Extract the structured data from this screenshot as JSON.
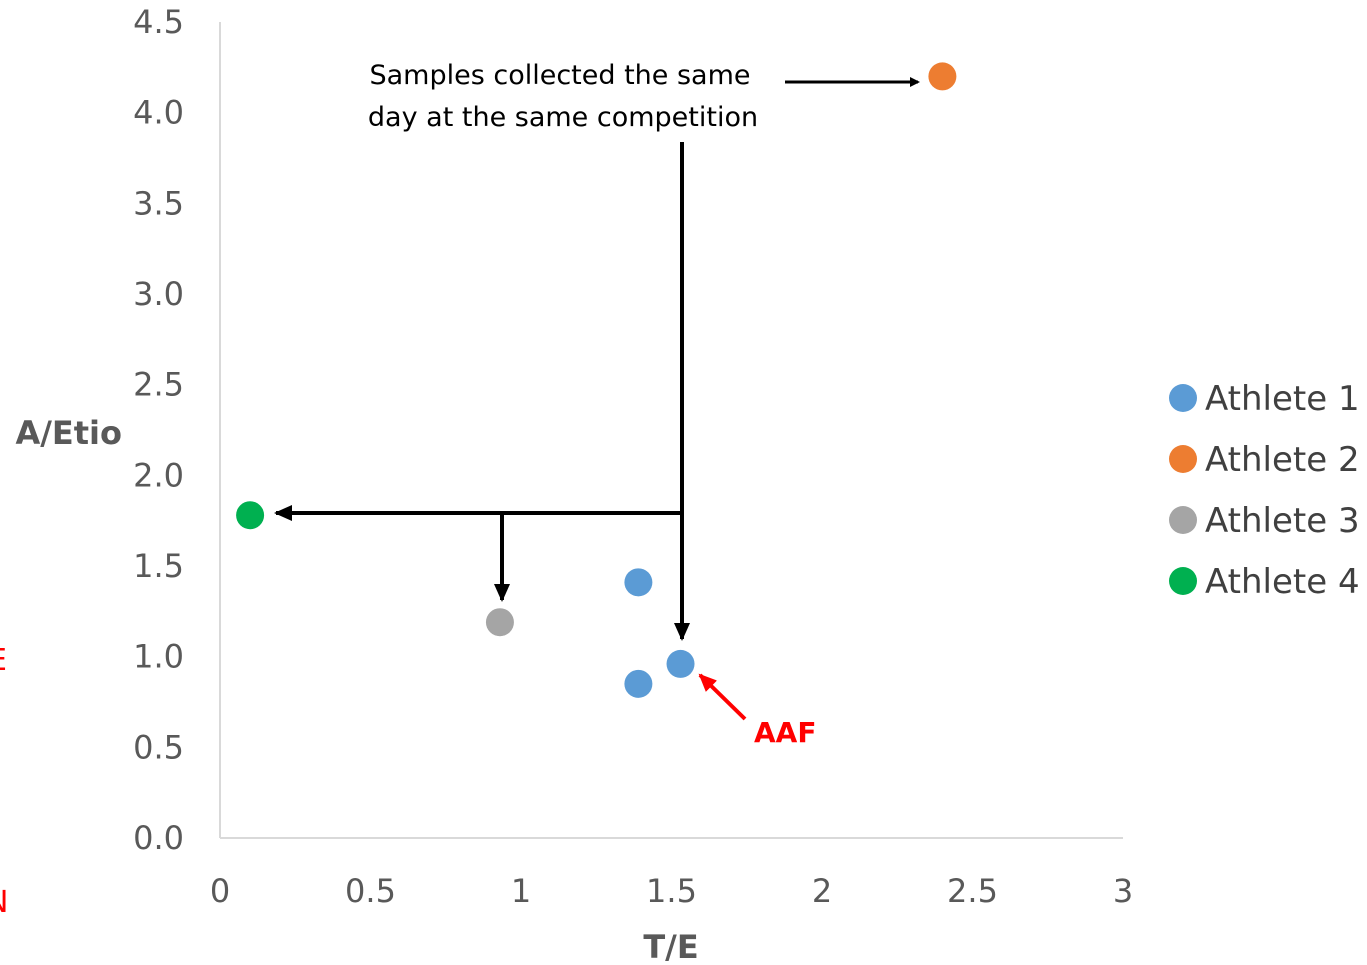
{
  "chart_data": {
    "type": "scatter",
    "title": "",
    "xlabel": "T/E",
    "ylabel": "A/Etio",
    "xlim": [
      0,
      3
    ],
    "ylim": [
      0,
      4.5
    ],
    "x_ticks": [
      "0",
      "0.5",
      "1",
      "1.5",
      "2",
      "2.5",
      "3"
    ],
    "y_ticks": [
      "0.0",
      "0.5",
      "1.0",
      "1.5",
      "2.0",
      "2.5",
      "3.0",
      "3.5",
      "4.0",
      "4.5"
    ],
    "grid": false,
    "legend_position": "right",
    "series": [
      {
        "name": "Athlete 1",
        "color": "#5B9BD5",
        "points": [
          [
            1.39,
            1.41
          ],
          [
            1.53,
            0.96
          ],
          [
            1.39,
            0.85
          ]
        ]
      },
      {
        "name": "Athlete 2",
        "color": "#ED7D31",
        "points": [
          [
            2.4,
            4.2
          ]
        ]
      },
      {
        "name": "Athlete 3",
        "color": "#A5A5A5",
        "points": [
          [
            0.93,
            1.19
          ]
        ]
      },
      {
        "name": "Athlete 4",
        "color": "#00B050",
        "points": [
          [
            0.1,
            1.78
          ]
        ]
      }
    ],
    "annotations": {
      "samples_line1": "Samples collected the same",
      "samples_line2": "day at the same competition",
      "aaf_label": "AAF",
      "aaf_color": "#FF0000"
    },
    "edge_fragments": [
      "E",
      "N"
    ]
  }
}
